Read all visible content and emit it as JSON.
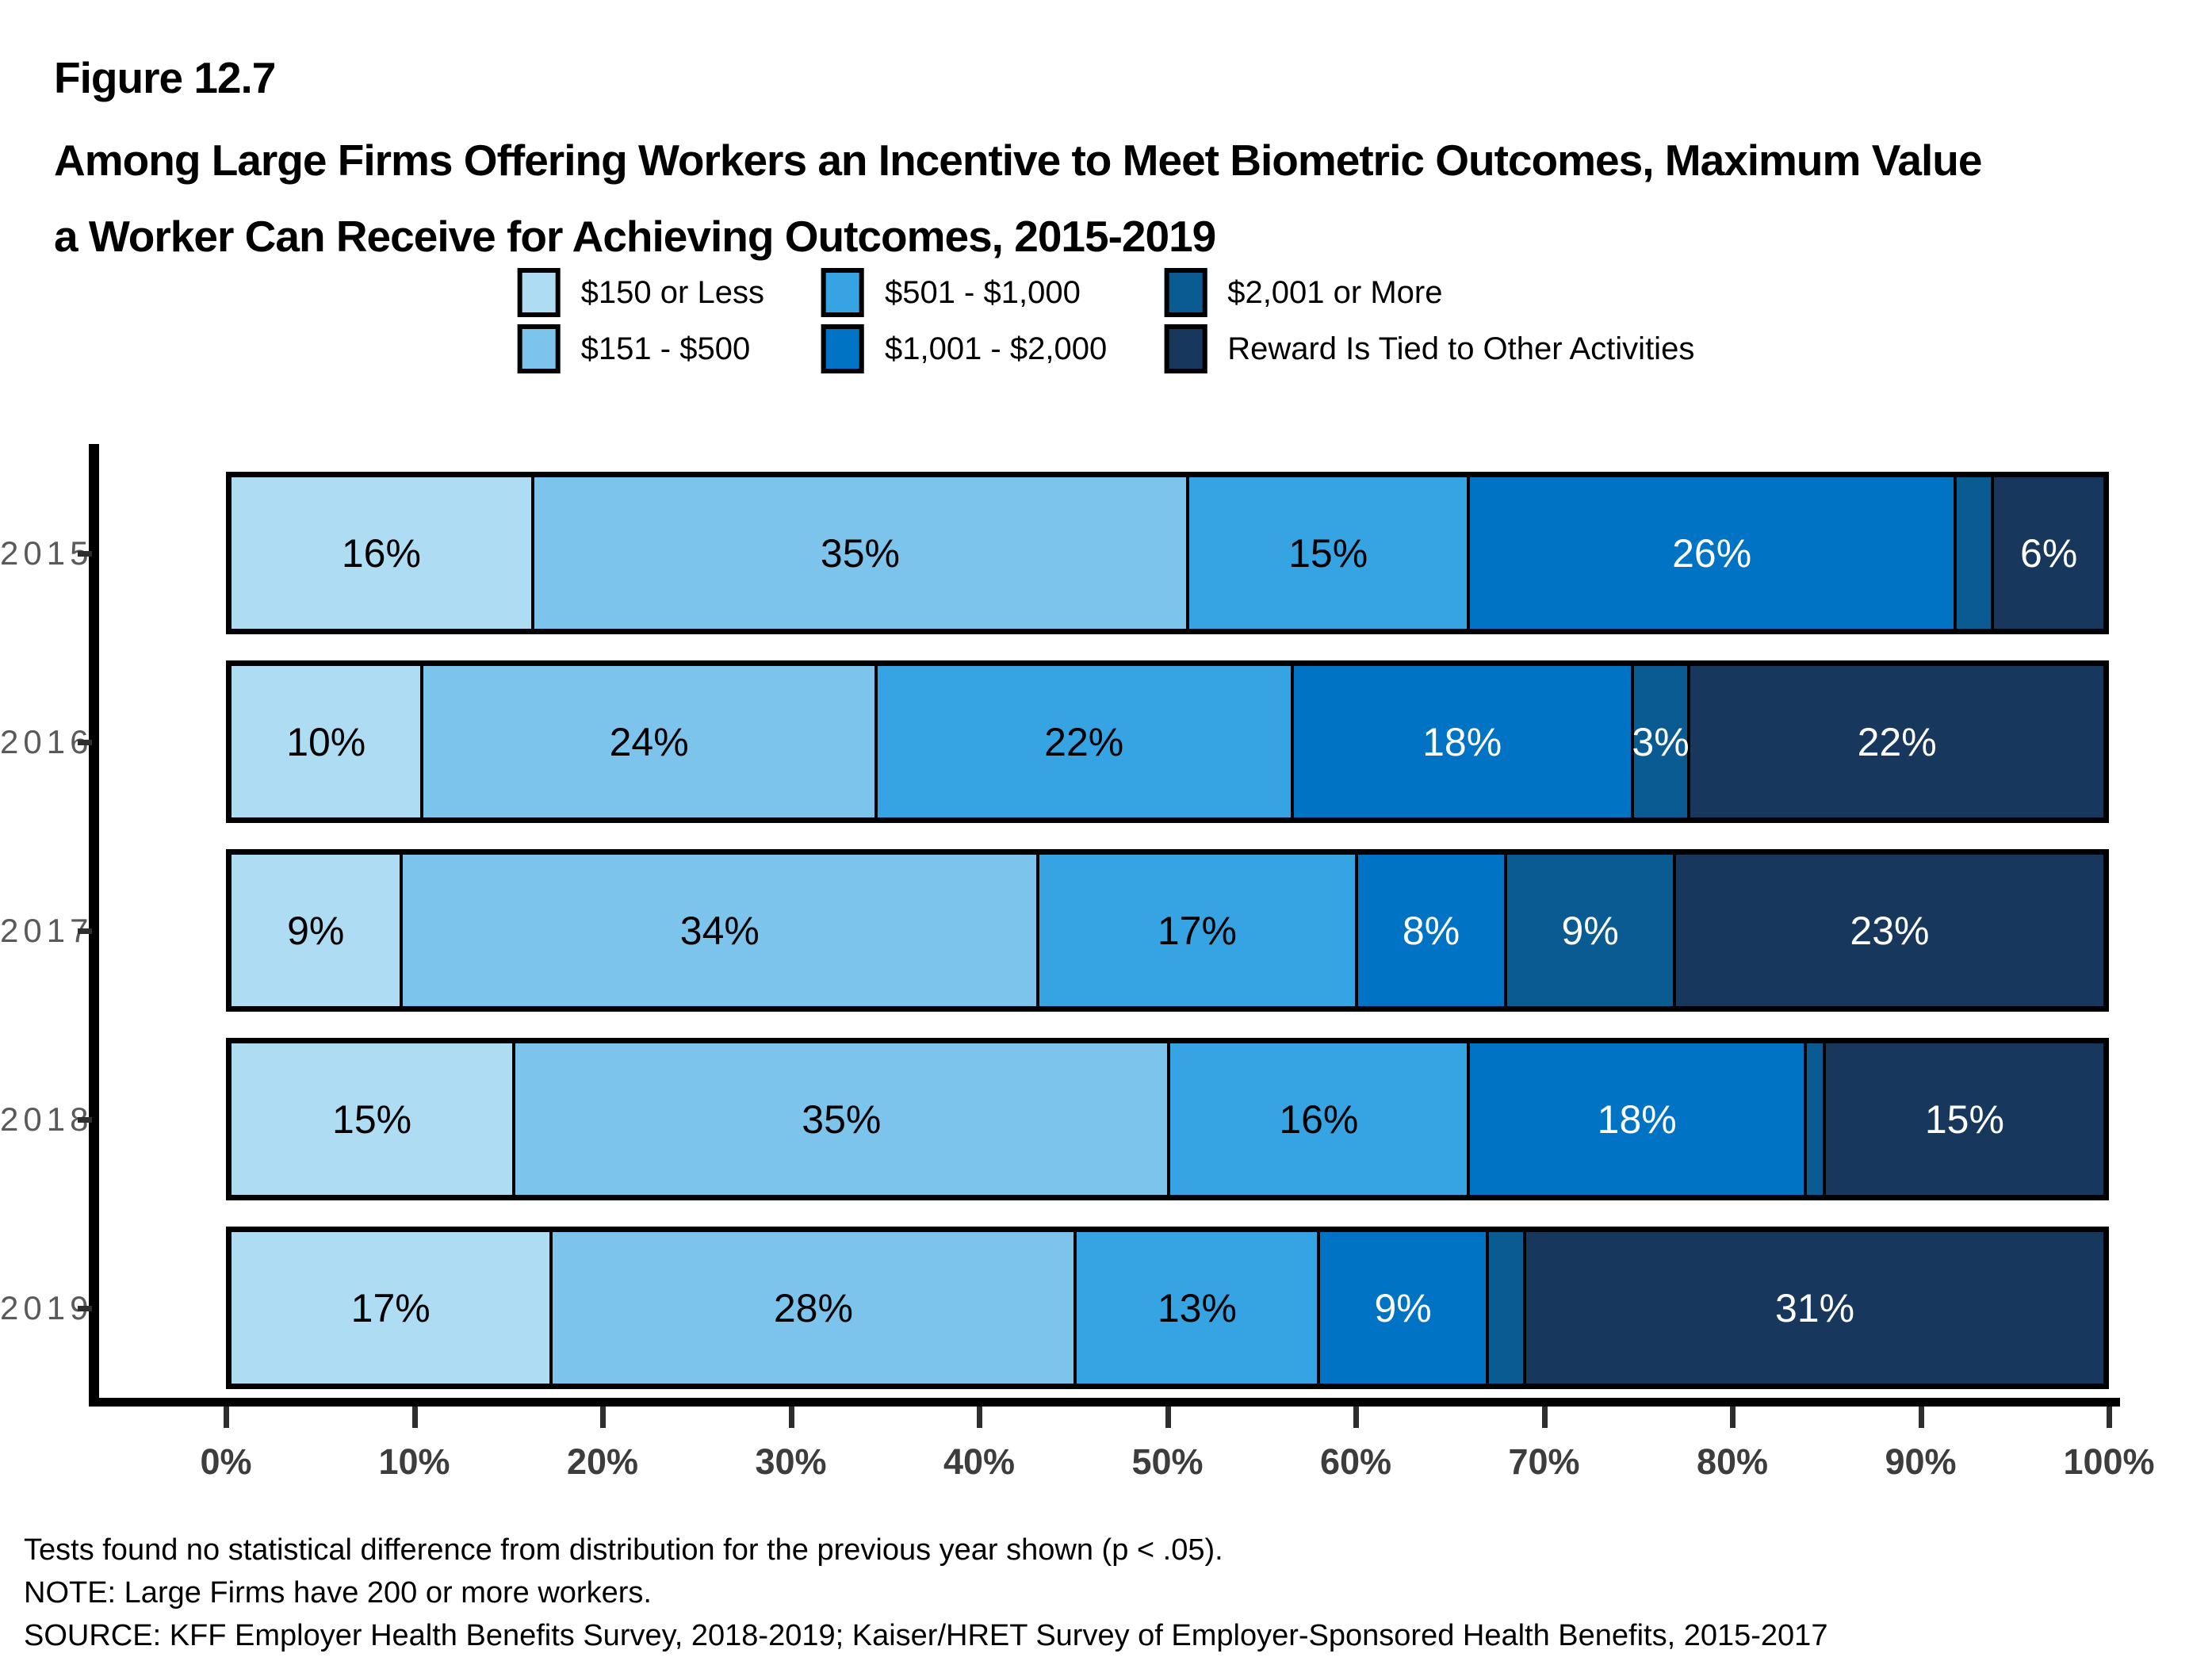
{
  "figure": {
    "label": "Figure 12.7",
    "title_line1": "Among Large Firms Offering Workers an Incentive to Meet Biometric Outcomes, Maximum Value",
    "title_line2": "a Worker Can Receive for Achieving Outcomes, 2015-2019"
  },
  "legend": {
    "columns": [
      {
        "items": [
          {
            "label": "$150 or Less",
            "color": "#AEDCF2"
          },
          {
            "label": "$151 - $500",
            "color": "#7CC4EC"
          }
        ]
      },
      {
        "items": [
          {
            "label": "$501 - $1,000",
            "color": "#36A3E2"
          },
          {
            "label": "$1,001 - $2,000",
            "color": "#0073C4"
          }
        ]
      },
      {
        "items": [
          {
            "label": "$2,001 or More",
            "color": "#0B5B93"
          },
          {
            "label": "Reward Is Tied to Other Activities",
            "color": "#17375C"
          }
        ]
      }
    ]
  },
  "chart_data": {
    "type": "bar",
    "orientation": "horizontal",
    "stacked": true,
    "title": "Among Large Firms Offering Workers an Incentive to Meet Biometric Outcomes, Maximum Value a Worker Can Receive for Achieving Outcomes, 2015-2019",
    "xlabel": "",
    "ylabel": "",
    "xlim": [
      0,
      100
    ],
    "x_ticks": [
      "0%",
      "10%",
      "20%",
      "30%",
      "40%",
      "50%",
      "60%",
      "70%",
      "80%",
      "90%",
      "100%"
    ],
    "categories": [
      "2015",
      "2016",
      "2017",
      "2018",
      "2019"
    ],
    "series_names": [
      "$150 or Less",
      "$151 - $500",
      "$501 - $1,000",
      "$1,001 - $2,000",
      "$2,001 or More",
      "Reward Is Tied to Other Activities"
    ],
    "series_colors": [
      "#AEDCF2",
      "#7CC4EC",
      "#36A3E2",
      "#0073C4",
      "#0B5B93",
      "#17375C"
    ],
    "label_text_colors": [
      "#000000",
      "#000000",
      "#000000",
      "#ffffff",
      "#ffffff",
      "#ffffff"
    ],
    "rows": [
      {
        "year": "2015",
        "values": [
          16,
          35,
          15,
          26,
          2,
          6
        ],
        "labels": [
          "16%",
          "35%",
          "15%",
          "26%",
          "",
          "6%"
        ]
      },
      {
        "year": "2016",
        "values": [
          10,
          24,
          22,
          18,
          3,
          22
        ],
        "labels": [
          "10%",
          "24%",
          "22%",
          "18%",
          "3%",
          "22%"
        ]
      },
      {
        "year": "2017",
        "values": [
          9,
          34,
          17,
          8,
          9,
          23
        ],
        "labels": [
          "9%",
          "34%",
          "17%",
          "8%",
          "9%",
          "23%"
        ]
      },
      {
        "year": "2018",
        "values": [
          15,
          35,
          16,
          18,
          1,
          15
        ],
        "labels": [
          "15%",
          "35%",
          "16%",
          "18%",
          "",
          "15%"
        ]
      },
      {
        "year": "2019",
        "values": [
          17,
          28,
          13,
          9,
          2,
          31
        ],
        "labels": [
          "17%",
          "28%",
          "13%",
          "9%",
          "",
          "31%"
        ]
      }
    ],
    "legend_position": "top",
    "grid": false
  },
  "footnotes": [
    "Tests found no statistical difference from distribution for the previous year shown (p < .05).",
    "NOTE: Large Firms have 200 or more workers.",
    "SOURCE: KFF Employer Health Benefits Survey, 2018-2019; Kaiser/HRET Survey of Employer-Sponsored Health Benefits, 2015-2017"
  ]
}
